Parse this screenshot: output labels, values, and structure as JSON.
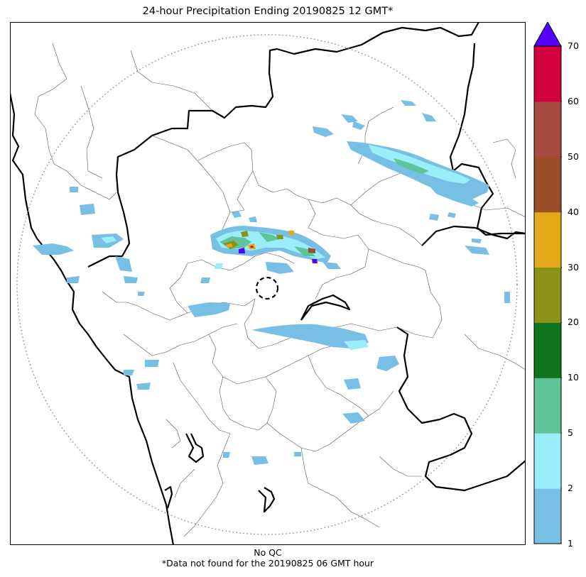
{
  "title": "24-hour Precipitation Ending 20190825 12 GMT*",
  "footer": {
    "qc_note": "No QC",
    "missing_note": "*Data not found for the 20190825 06 GMT hour"
  },
  "colorbar": {
    "ticks": [
      "1",
      "2",
      "5",
      "10",
      "20",
      "30",
      "40",
      "50",
      "60",
      "70"
    ],
    "colors": [
      "#77bfe4",
      "#9aeefa",
      "#5fc49a",
      "#0f741b",
      "#8a9218",
      "#e5a818",
      "#9b4d27",
      "#a64a42",
      "#d3003f"
    ],
    "extend_color": "#5500ff"
  },
  "legend_colors": {
    "background": "#ffffff",
    "boundary": "#000000",
    "district": "#555555",
    "range_ring": "#888888"
  }
}
